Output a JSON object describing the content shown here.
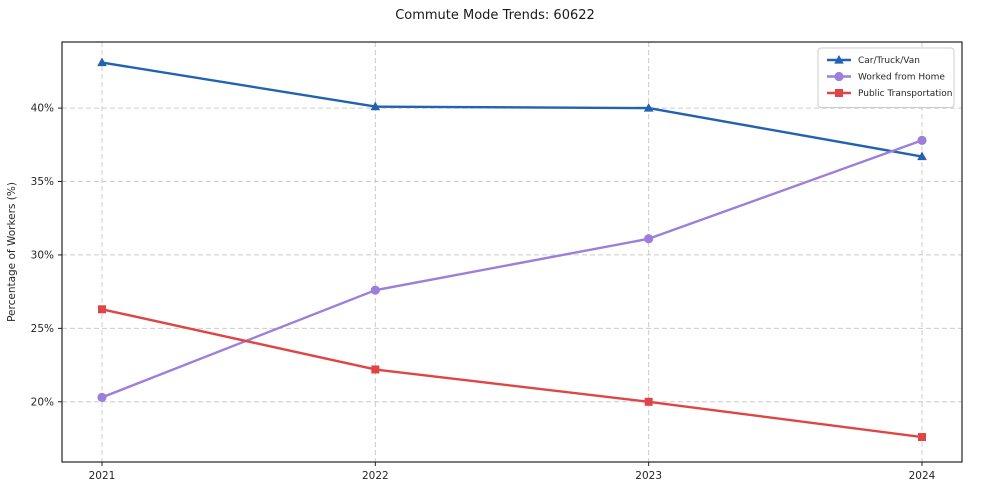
{
  "figure": {
    "title": "Commute Mode Trends: 60622"
  },
  "chart_data": {
    "type": "line",
    "title": "Commute Mode Trends: 60622",
    "xlabel": "",
    "ylabel": "Percentage of Workers (%)",
    "categories": [
      "2021",
      "2022",
      "2023",
      "2024"
    ],
    "series": [
      {
        "name": "Car/Truck/Van",
        "color": "#2262b0",
        "marker": "triangle",
        "values": [
          43.1,
          40.1,
          40.0,
          36.7
        ]
      },
      {
        "name": "Worked from Home",
        "color": "#9b7fdb",
        "marker": "circle",
        "values": [
          20.3,
          27.6,
          31.1,
          37.8
        ]
      },
      {
        "name": "Public Transportation",
        "color": "#e04545",
        "marker": "square",
        "values": [
          26.3,
          22.2,
          20.0,
          17.6
        ]
      }
    ],
    "yticks": [
      20,
      25,
      30,
      35,
      40
    ],
    "ytick_labels": [
      "20%",
      "25%",
      "30%",
      "35%",
      "40%"
    ],
    "ylim": [
      15.9,
      44.5
    ],
    "grid": true,
    "grid_style": "dashed",
    "legend_position": "top-right",
    "colors": {
      "axis": "#222222",
      "grid": "#cccccc",
      "tick_label": "#262626",
      "legend_border": "#cccccc",
      "background": "#ffffff"
    }
  }
}
